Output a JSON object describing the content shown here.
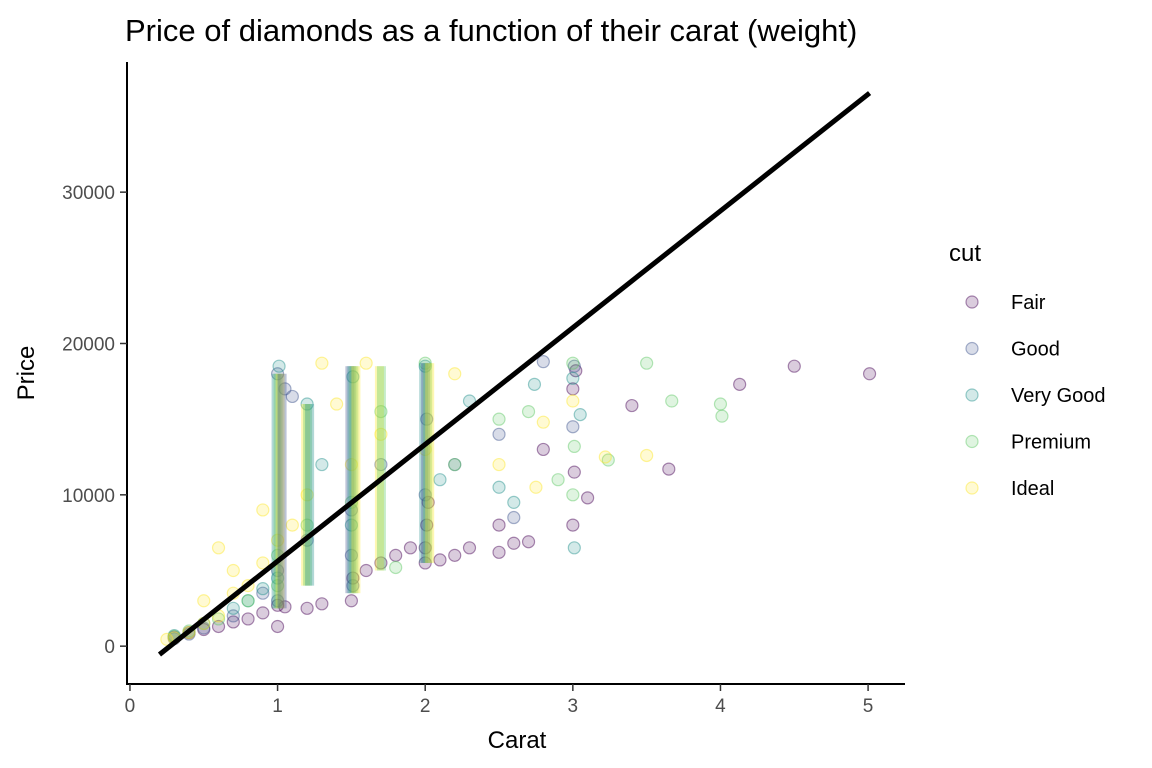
{
  "chart_data": {
    "type": "scatter",
    "title": "Price of diamonds as a function of their carat (weight)",
    "xlabel": "Carat",
    "ylabel": "Price",
    "xlim": [
      -0.02,
      5.25
    ],
    "ylim": [
      -2500,
      38600
    ],
    "x_ticks": [
      0,
      1,
      2,
      3,
      4,
      5
    ],
    "y_ticks": [
      0,
      10000,
      20000,
      30000
    ],
    "grid": false,
    "legend": {
      "title": "cut",
      "position": "right",
      "entries": [
        {
          "name": "Fair",
          "color": "#440154"
        },
        {
          "name": "Good",
          "color": "#3B528B"
        },
        {
          "name": "Very Good",
          "color": "#21908C"
        },
        {
          "name": "Premium",
          "color": "#5DC863"
        },
        {
          "name": "Ideal",
          "color": "#FDE725"
        }
      ]
    },
    "point_opacity": 0.2,
    "fit_line": {
      "x": [
        0.2,
        5.01
      ],
      "y": [
        -550,
        36550
      ],
      "color": "#000000"
    },
    "series": [
      {
        "name": "Fair",
        "color": "#440154",
        "points": [
          [
            0.3,
            600
          ],
          [
            0.4,
            900
          ],
          [
            0.5,
            1100
          ],
          [
            0.6,
            1300
          ],
          [
            0.7,
            1600
          ],
          [
            0.8,
            1800
          ],
          [
            0.9,
            2200
          ],
          [
            1.0,
            1300
          ],
          [
            1.0,
            2700
          ],
          [
            1.05,
            2600
          ],
          [
            1.2,
            2500
          ],
          [
            1.3,
            2800
          ],
          [
            1.5,
            3000
          ],
          [
            1.51,
            4500
          ],
          [
            1.6,
            5000
          ],
          [
            1.7,
            5500
          ],
          [
            1.8,
            6000
          ],
          [
            1.9,
            6500
          ],
          [
            2.0,
            5500
          ],
          [
            2.0,
            6500
          ],
          [
            2.01,
            8000
          ],
          [
            2.02,
            9500
          ],
          [
            2.1,
            5700
          ],
          [
            2.2,
            6000
          ],
          [
            2.3,
            6500
          ],
          [
            2.5,
            6200
          ],
          [
            2.6,
            6800
          ],
          [
            2.5,
            8000
          ],
          [
            2.7,
            6900
          ],
          [
            3.0,
            8000
          ],
          [
            3.01,
            11500
          ],
          [
            3.02,
            18200
          ],
          [
            3.1,
            9800
          ],
          [
            3.4,
            15900
          ],
          [
            3.65,
            11700
          ],
          [
            4.13,
            17300
          ],
          [
            4.5,
            18500
          ],
          [
            5.01,
            18000
          ],
          [
            3.0,
            17000
          ],
          [
            2.8,
            13000
          ]
        ]
      },
      {
        "name": "Good",
        "color": "#3B528B",
        "points": [
          [
            0.3,
            500
          ],
          [
            0.4,
            800
          ],
          [
            0.5,
            1200
          ],
          [
            0.7,
            2000
          ],
          [
            0.9,
            3500
          ],
          [
            1.0,
            3000
          ],
          [
            1.0,
            5000
          ],
          [
            1.05,
            17000
          ],
          [
            1.2,
            7000
          ],
          [
            1.5,
            6000
          ],
          [
            1.5,
            9000
          ],
          [
            1.51,
            4000
          ],
          [
            1.7,
            12000
          ],
          [
            2.0,
            10000
          ],
          [
            2.01,
            15000
          ],
          [
            2.2,
            12000
          ],
          [
            2.5,
            14000
          ],
          [
            2.6,
            8500
          ],
          [
            2.8,
            18800
          ],
          [
            3.0,
            14500
          ],
          [
            3.01,
            18500
          ],
          [
            1.0,
            18000
          ],
          [
            1.1,
            16500
          ]
        ]
      },
      {
        "name": "Very Good",
        "color": "#21908C",
        "points": [
          [
            0.3,
            700
          ],
          [
            0.5,
            1500
          ],
          [
            0.7,
            2500
          ],
          [
            0.9,
            3800
          ],
          [
            1.0,
            4500
          ],
          [
            1.01,
            18500
          ],
          [
            1.2,
            16000
          ],
          [
            1.5,
            8000
          ],
          [
            1.51,
            17800
          ],
          [
            2.0,
            18500
          ],
          [
            2.1,
            11000
          ],
          [
            2.5,
            10500
          ],
          [
            2.6,
            9500
          ],
          [
            2.74,
            17300
          ],
          [
            3.0,
            17700
          ],
          [
            3.01,
            6500
          ],
          [
            3.05,
            15300
          ],
          [
            1.3,
            12000
          ],
          [
            2.3,
            16200
          ],
          [
            0.8,
            3000
          ]
        ]
      },
      {
        "name": "Premium",
        "color": "#5DC863",
        "points": [
          [
            0.3,
            650
          ],
          [
            0.4,
            1000
          ],
          [
            0.6,
            1800
          ],
          [
            0.8,
            3000
          ],
          [
            1.0,
            4000
          ],
          [
            1.0,
            6000
          ],
          [
            1.2,
            8000
          ],
          [
            1.5,
            9500
          ],
          [
            1.8,
            5200
          ],
          [
            2.0,
            18700
          ],
          [
            2.2,
            12000
          ],
          [
            2.5,
            15000
          ],
          [
            2.7,
            15500
          ],
          [
            3.0,
            18700
          ],
          [
            3.01,
            13200
          ],
          [
            3.0,
            10000
          ],
          [
            3.5,
            18700
          ],
          [
            3.67,
            16200
          ],
          [
            4.01,
            15200
          ],
          [
            4.0,
            16000
          ],
          [
            3.24,
            12300
          ],
          [
            2.9,
            11000
          ],
          [
            1.7,
            15500
          ]
        ]
      },
      {
        "name": "Ideal",
        "color": "#FDE725",
        "points": [
          [
            0.25,
            450
          ],
          [
            0.3,
            550
          ],
          [
            0.4,
            900
          ],
          [
            0.5,
            1500
          ],
          [
            0.5,
            3000
          ],
          [
            0.6,
            2000
          ],
          [
            0.6,
            6500
          ],
          [
            0.7,
            3500
          ],
          [
            0.7,
            5000
          ],
          [
            0.8,
            4000
          ],
          [
            0.9,
            5500
          ],
          [
            0.9,
            9000
          ],
          [
            1.0,
            7000
          ],
          [
            1.1,
            8000
          ],
          [
            1.2,
            10000
          ],
          [
            1.3,
            18700
          ],
          [
            1.5,
            12000
          ],
          [
            1.6,
            18700
          ],
          [
            1.7,
            14000
          ],
          [
            2.0,
            13000
          ],
          [
            2.2,
            18000
          ],
          [
            2.5,
            12000
          ],
          [
            2.75,
            10500
          ],
          [
            3.0,
            16200
          ],
          [
            3.22,
            12500
          ],
          [
            3.5,
            12600
          ],
          [
            2.8,
            14800
          ],
          [
            1.4,
            16000
          ]
        ]
      }
    ]
  }
}
